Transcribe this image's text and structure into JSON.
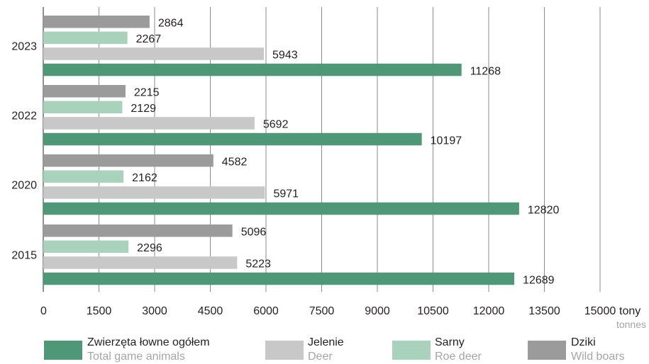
{
  "chart_data": {
    "type": "bar",
    "orientation": "horizontal",
    "categories": [
      "2023",
      "2022",
      "2020",
      "2015"
    ],
    "series": [
      {
        "name": "Dziki",
        "name_en": "Wild boars",
        "color": "#9b9b9b",
        "values": [
          2864,
          2215,
          4582,
          5096
        ]
      },
      {
        "name": "Sarny",
        "name_en": "Roe deer",
        "color": "#a9d2bd",
        "values": [
          2267,
          2129,
          2162,
          2296
        ]
      },
      {
        "name": "Jelenie",
        "name_en": "Deer",
        "color": "#c8c8c8",
        "values": [
          5943,
          5692,
          5971,
          5223
        ]
      },
      {
        "name": "Zwierzęta łowne ogółem",
        "name_en": "Total game animals",
        "color": "#4f9877",
        "values": [
          11268,
          10197,
          12820,
          12689
        ]
      }
    ],
    "x_ticks": [
      "0",
      "1500",
      "3000",
      "4500",
      "6000",
      "7500",
      "9000",
      "10500",
      "12000",
      "13500",
      "15000"
    ],
    "x_unit_pl": "tony",
    "x_unit_en": "tonnes",
    "xlim": [
      0,
      15000
    ],
    "grid": "vertical",
    "legend_position": "bottom",
    "legend_order": [
      "Zwierzęta łowne ogółem",
      "Jelenie",
      "Sarny",
      "Dziki"
    ],
    "data_labels": true
  }
}
